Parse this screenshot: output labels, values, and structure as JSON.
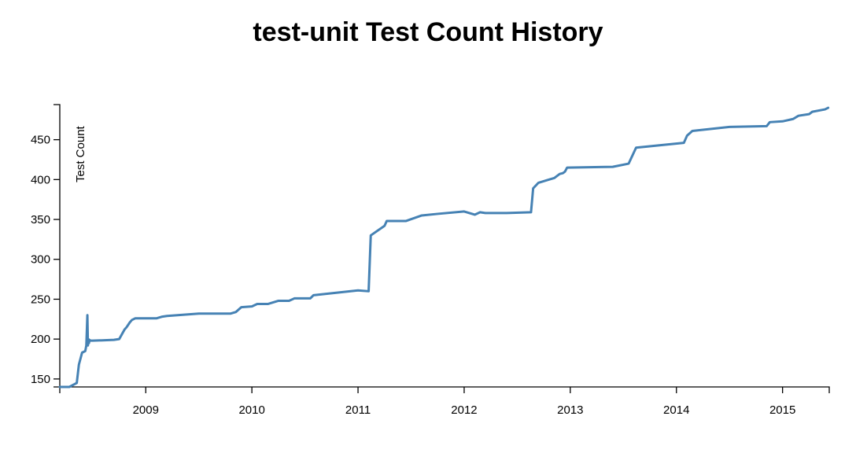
{
  "chart_data": {
    "type": "line",
    "title": "test-unit Test Count History",
    "xlabel": "",
    "ylabel": "Test Count",
    "xlim": [
      2008.19,
      2015.44
    ],
    "ylim": [
      140,
      494
    ],
    "x_ticks": [
      2009,
      2010,
      2011,
      2012,
      2013,
      2014,
      2015
    ],
    "y_ticks": [
      150,
      200,
      250,
      300,
      350,
      400,
      450
    ],
    "grid": false,
    "legend": "none",
    "colors": {
      "line": "#4682b4"
    },
    "series": [
      {
        "x": [
          2008.19,
          2008.28,
          2008.35,
          2008.37,
          2008.4,
          2008.43,
          2008.44,
          2008.45,
          2008.455,
          2008.46,
          2008.465,
          2008.47,
          2008.48,
          2008.5,
          2008.7,
          2008.75,
          2008.8,
          2008.82,
          2008.85,
          2008.87,
          2008.9,
          2008.95,
          2009.0,
          2009.1,
          2009.15,
          2009.2,
          2009.3,
          2009.5,
          2009.75,
          2009.8,
          2009.85,
          2009.9,
          2010.0,
          2010.05,
          2010.15,
          2010.25,
          2010.35,
          2010.4,
          2010.55,
          2010.58,
          2011.0,
          2011.1,
          2011.12,
          2011.25,
          2011.27,
          2011.45,
          2011.6,
          2011.75,
          2012.0,
          2012.1,
          2012.15,
          2012.2,
          2012.4,
          2012.63,
          2012.65,
          2012.7,
          2012.8,
          2012.85,
          2012.9,
          2012.93,
          2012.95,
          2012.97,
          2013.4,
          2013.55,
          2013.62,
          2014.07,
          2014.1,
          2014.15,
          2014.5,
          2014.85,
          2014.88,
          2015.0,
          2015.1,
          2015.15,
          2015.25,
          2015.28,
          2015.4,
          2015.43
        ],
        "y": [
          140,
          140,
          145,
          168,
          183,
          185,
          192,
          230,
          192,
          200,
          195,
          199,
          198,
          198,
          199,
          200,
          212,
          215,
          221,
          224,
          226,
          226,
          226,
          226,
          228,
          229,
          230,
          232,
          232,
          232,
          234,
          240,
          241,
          244,
          244,
          248,
          248,
          251,
          251,
          255,
          261,
          260,
          330,
          342,
          348,
          348,
          355,
          357,
          360,
          356,
          359,
          358,
          358,
          359,
          389,
          396,
          400,
          402,
          407,
          408,
          410,
          415,
          416,
          420,
          440,
          446,
          455,
          461,
          466,
          467,
          472,
          473,
          476,
          480,
          482,
          485,
          488,
          490
        ]
      }
    ]
  }
}
